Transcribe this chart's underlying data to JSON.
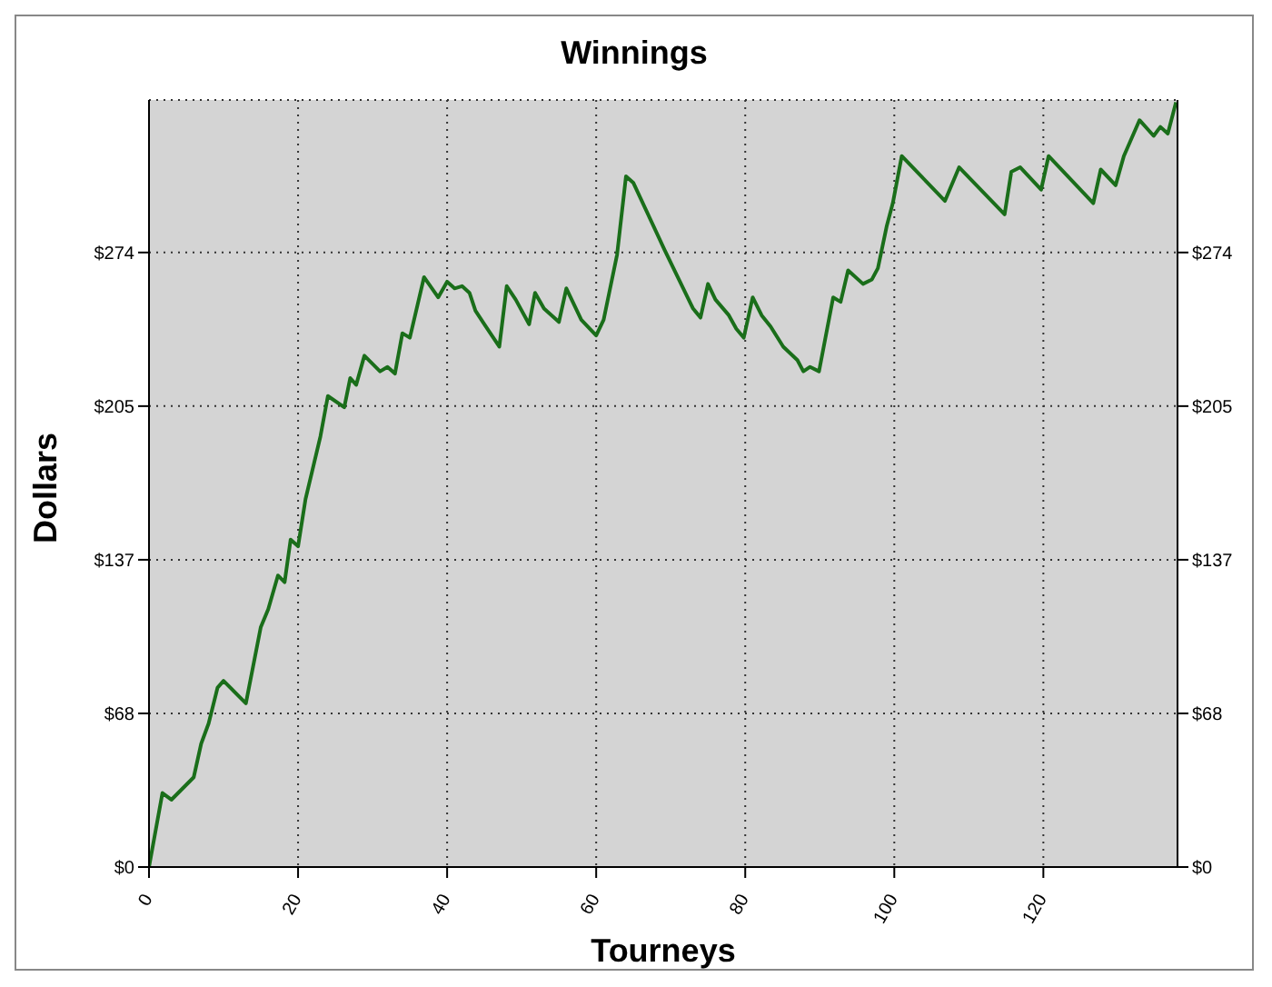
{
  "chart_data": {
    "type": "line",
    "title": "Winnings",
    "xlabel": "Tourneys",
    "ylabel": "Dollars",
    "x": [
      0,
      1.8,
      3,
      6,
      7,
      8,
      9.2,
      10,
      13,
      15,
      16,
      17.3,
      18.2,
      19,
      20,
      21,
      23,
      24,
      26.2,
      27,
      27.8,
      28.9,
      31,
      32,
      33,
      34,
      35,
      36.9,
      38.8,
      40,
      41,
      42,
      43,
      43.8,
      45,
      47,
      48,
      49.2,
      51,
      51.8,
      53,
      55,
      56,
      58,
      60,
      61,
      62.8,
      64,
      65,
      69.2,
      73,
      74,
      75,
      76,
      77.8,
      78.8,
      79.8,
      81,
      82.2,
      83.4,
      85.1,
      87,
      87.8,
      88.7,
      89.9,
      91.8,
      92.8,
      93.8,
      95.8,
      97,
      97.8,
      99,
      99.8,
      101,
      106.8,
      108.7,
      114.8,
      115.7,
      116.9,
      119.7,
      120.7,
      126.7,
      127.7,
      129.7,
      130.8,
      132.9,
      134.8,
      135.7,
      136.7,
      137.8
    ],
    "series": [
      {
        "color": "#1a6e1a",
        "values": [
          0,
          33,
          30,
          40,
          55,
          64,
          80,
          83,
          73,
          107,
          115,
          130,
          127,
          146,
          143,
          164,
          192,
          210,
          205,
          218,
          215,
          228,
          221,
          223,
          220,
          238,
          236,
          263,
          254,
          261,
          258,
          259,
          256,
          248,
          242,
          232,
          259,
          253,
          242,
          256,
          249,
          243,
          258,
          244,
          237,
          244,
          273,
          308,
          305,
          275,
          249,
          245,
          260,
          253,
          246,
          240,
          236,
          254,
          246,
          241,
          232,
          226,
          221,
          223,
          221,
          254,
          252,
          266,
          260,
          262,
          267,
          286,
          296,
          317,
          297,
          312,
          291,
          310,
          312,
          302,
          317,
          296,
          311,
          304,
          317,
          333,
          326,
          330,
          327,
          341
        ]
      }
    ],
    "xlim": [
      0,
      138
    ],
    "xticks": [
      0,
      20,
      40,
      60,
      80,
      100,
      120
    ],
    "ylim": [
      0,
      342
    ],
    "yticks": [
      {
        "value": 0,
        "label": "$0"
      },
      {
        "value": 68.5,
        "label": "$68"
      },
      {
        "value": 137,
        "label": "$137"
      },
      {
        "value": 205.5,
        "label": "$205"
      },
      {
        "value": 274,
        "label": "$274"
      }
    ],
    "y2lim": [
      0,
      342
    ],
    "y2ticks": [
      {
        "value": 0,
        "label": "$0"
      },
      {
        "value": 68.5,
        "label": "$68"
      },
      {
        "value": 137,
        "label": "$137"
      },
      {
        "value": 205.5,
        "label": "$205"
      },
      {
        "value": 274,
        "label": "$274"
      }
    ],
    "grid": true,
    "legend": false,
    "marker": "none",
    "line_style": "solid"
  }
}
